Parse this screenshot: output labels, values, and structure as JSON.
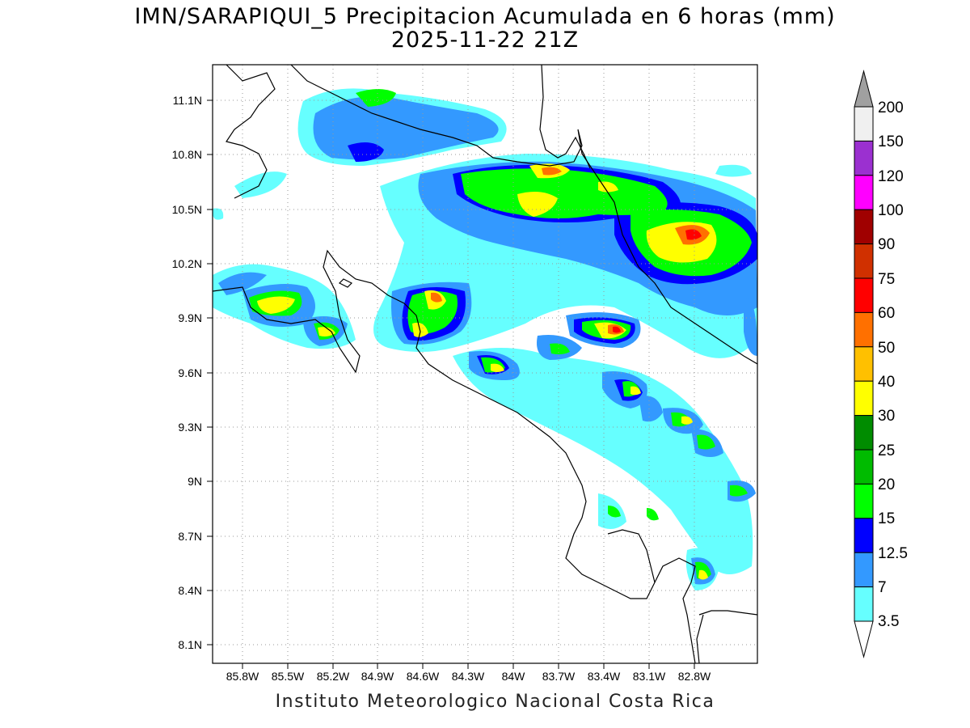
{
  "title": {
    "line1": "IMN/SARAPIQUI_5 Precipitacion Acumulada en 6 horas (mm)",
    "line2": "2025-11-22 21Z"
  },
  "footer": "Instituto Meteorologico Nacional Costa Rica",
  "map": {
    "region": "Costa Rica",
    "lat_labels": [
      "11.1N",
      "10.8N",
      "10.5N",
      "10.2N",
      "9.9N",
      "9.6N",
      "9.3N",
      "9N",
      "8.7N",
      "8.4N",
      "8.1N"
    ],
    "lon_labels": [
      "85.8W",
      "85.5W",
      "85.2W",
      "84.9W",
      "84.6W",
      "84.3W",
      "84W",
      "83.7W",
      "83.4W",
      "83.1W",
      "82.8W"
    ],
    "grid": "dotted"
  },
  "colorbar": {
    "levels": [
      "200",
      "150",
      "120",
      "100",
      "90",
      "75",
      "60",
      "50",
      "40",
      "30",
      "25",
      "20",
      "15",
      "12.5",
      "7",
      "3.5"
    ],
    "colors": [
      "#f0f0f0",
      "#9b30d0",
      "#ff00ff",
      "#a00000",
      "#d03000",
      "#ff0000",
      "#ff7000",
      "#ffc000",
      "#ffff00",
      "#008c00",
      "#00bb00",
      "#00ff00",
      "#0000ff",
      "#3399ff",
      "#66ffff"
    ],
    "top_arrow_color": "#a0a0a0",
    "bottom_arrow_color": "#ffffff"
  }
}
